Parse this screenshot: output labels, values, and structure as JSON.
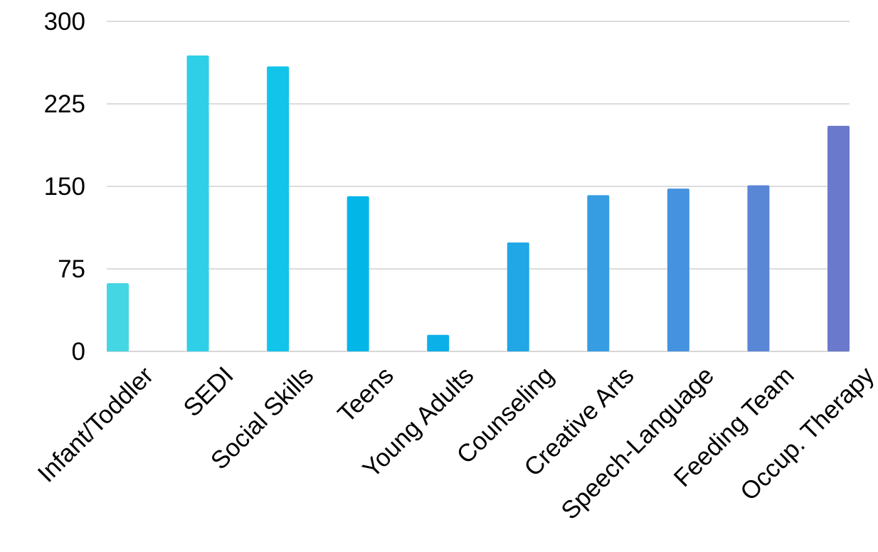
{
  "chart_data": {
    "type": "bar",
    "title": "",
    "xlabel": "",
    "ylabel": "",
    "ylim": [
      0,
      300
    ],
    "yticks": [
      0,
      75,
      150,
      225,
      300
    ],
    "grid": true,
    "legend": "none",
    "categories": [
      "Infant/Toddler",
      "SEDI",
      "Social Skills",
      "Teens",
      "Young Adults",
      "Counseling",
      "Creative Arts",
      "Speech-Language",
      "Feeding Team",
      "Occup. Therapy"
    ],
    "values": [
      62,
      269,
      259,
      141,
      15,
      99,
      142,
      148,
      151,
      205
    ],
    "colors": [
      "#45d6e3",
      "#2fcfe8",
      "#12c4ea",
      "#03b6e8",
      "#0cb0e8",
      "#21a6e6",
      "#379de3",
      "#4592e0",
      "#5a86d6",
      "#6b79cc"
    ]
  }
}
